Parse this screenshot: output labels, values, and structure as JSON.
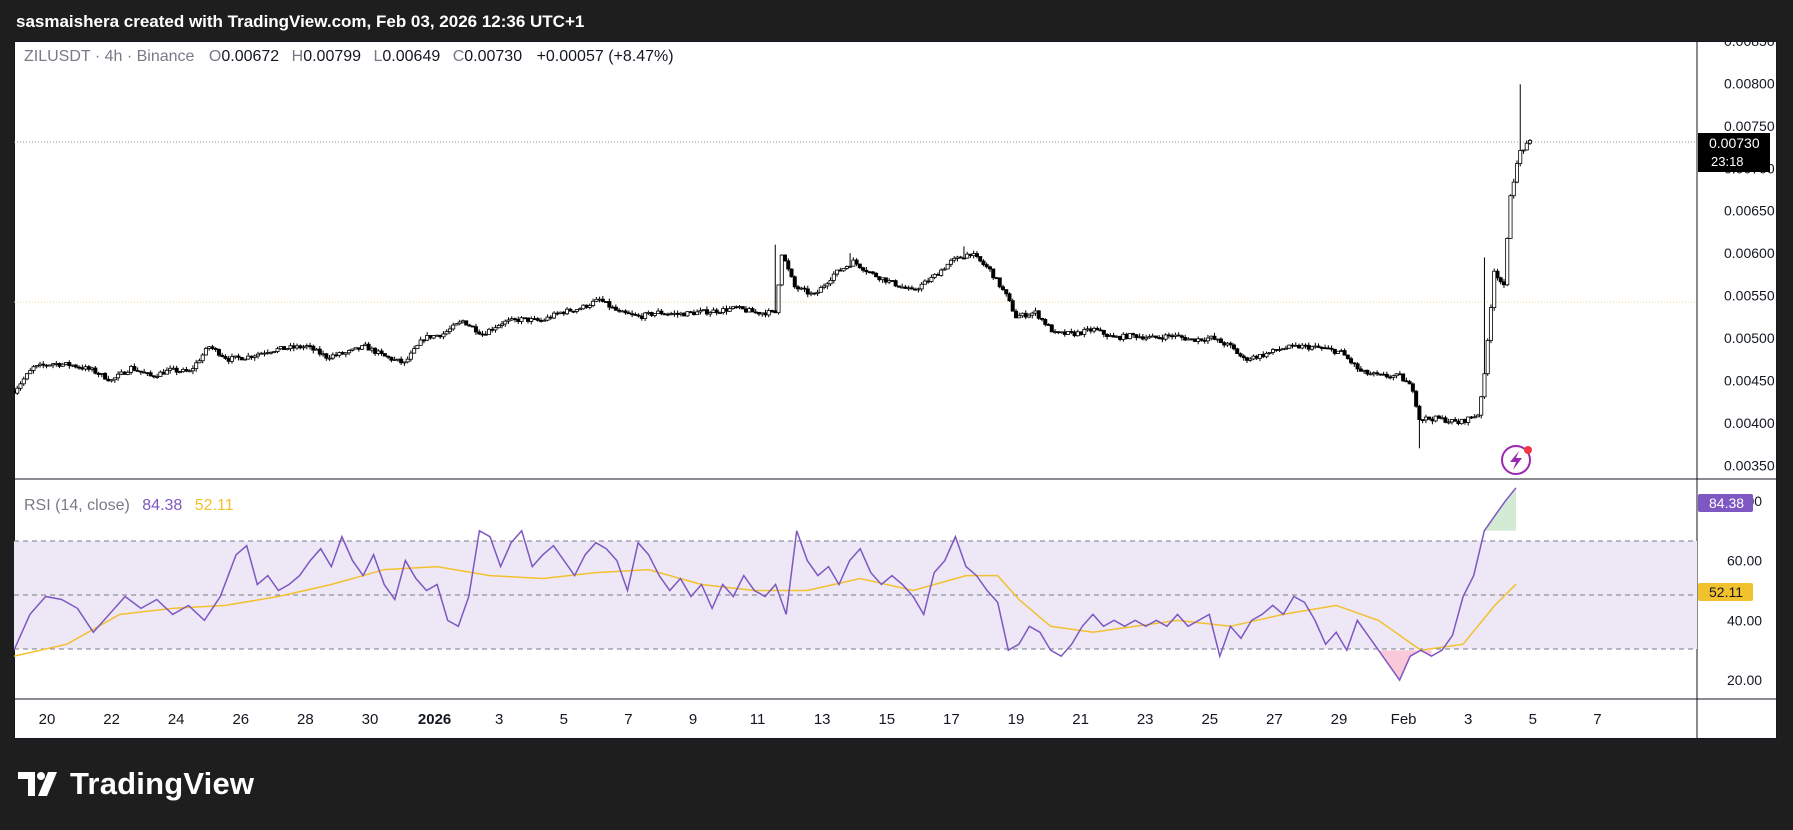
{
  "header": {
    "attribution": "sasmaishera created with TradingView.com, Feb 03, 2026 12:36 UTC+1"
  },
  "legend": {
    "symbol": "ZILUSDT · 4h · Binance",
    "o_label": "O",
    "o_value": "0.00672",
    "h_label": "H",
    "h_value": "0.00799",
    "l_label": "L",
    "l_value": "0.00649",
    "c_label": "C",
    "c_value": "0.00730",
    "change": "+0.00057 (+8.47%)"
  },
  "price_badge": {
    "value": "0.00730",
    "countdown": "23:18"
  },
  "rsi_legend": {
    "label": "RSI (14, close)",
    "rsi_value": "84.38",
    "ma_value": "52.11"
  },
  "rsi_badges": {
    "rsi": "84.38",
    "ma": "52.11"
  },
  "footer": {
    "brand": "TradingView"
  },
  "colors": {
    "rsi_line": "#7e57c2",
    "rsi_ma": "#f2c12e",
    "rsi_band": "#ede7f6",
    "candle": "#000000",
    "badge_bg": "#000000"
  },
  "chart_data": [
    {
      "type": "candlestick",
      "symbol": "ZILUSDT",
      "interval": "4h",
      "exchange": "Binance",
      "ylim": [
        0.00335,
        0.0085
      ],
      "y_ticks": [
        "0.00350",
        "0.00400",
        "0.00450",
        "0.00500",
        "0.00550",
        "0.00600",
        "0.00650",
        "0.00700",
        "0.00750",
        "0.00800",
        "0.00850"
      ],
      "x_ticks": [
        "20",
        "22",
        "24",
        "26",
        "28",
        "30",
        "2026",
        "3",
        "5",
        "7",
        "9",
        "11",
        "13",
        "15",
        "17",
        "19",
        "21",
        "23",
        "25",
        "27",
        "29",
        "Feb",
        "3",
        "5",
        "7"
      ],
      "last_price": 0.0073,
      "close_path": [
        [
          0,
          0.00438
        ],
        [
          6,
          0.00465
        ],
        [
          12,
          0.0047
        ],
        [
          18,
          0.00468
        ],
        [
          24,
          0.00462
        ],
        [
          30,
          0.0045
        ],
        [
          36,
          0.00465
        ],
        [
          42,
          0.00455
        ],
        [
          48,
          0.00462
        ],
        [
          54,
          0.0046
        ],
        [
          60,
          0.0049
        ],
        [
          66,
          0.00475
        ],
        [
          72,
          0.00478
        ],
        [
          78,
          0.00485
        ],
        [
          84,
          0.00488
        ],
        [
          90,
          0.0049
        ],
        [
          96,
          0.00478
        ],
        [
          102,
          0.00482
        ],
        [
          108,
          0.0049
        ],
        [
          114,
          0.00478
        ],
        [
          120,
          0.0047
        ],
        [
          126,
          0.005
        ],
        [
          132,
          0.00505
        ],
        [
          138,
          0.0052
        ],
        [
          144,
          0.00505
        ],
        [
          150,
          0.00518
        ],
        [
          156,
          0.00522
        ],
        [
          162,
          0.0052
        ],
        [
          168,
          0.0053
        ],
        [
          174,
          0.00535
        ],
        [
          180,
          0.00545
        ],
        [
          186,
          0.0053
        ],
        [
          192,
          0.00525
        ],
        [
          198,
          0.0053
        ],
        [
          204,
          0.00528
        ],
        [
          210,
          0.0053
        ],
        [
          216,
          0.00532
        ],
        [
          222,
          0.00535
        ],
        [
          228,
          0.0053
        ],
        [
          234,
          0.0053
        ],
        [
          236,
          0.006
        ],
        [
          240,
          0.0056
        ],
        [
          246,
          0.0055
        ],
        [
          252,
          0.00575
        ],
        [
          258,
          0.0059
        ],
        [
          264,
          0.00575
        ],
        [
          270,
          0.00565
        ],
        [
          276,
          0.00555
        ],
        [
          282,
          0.0057
        ],
        [
          288,
          0.0059
        ],
        [
          294,
          0.006
        ],
        [
          300,
          0.0058
        ],
        [
          305,
          0.0055
        ],
        [
          308,
          0.00525
        ],
        [
          314,
          0.0053
        ],
        [
          320,
          0.00505
        ],
        [
          326,
          0.00505
        ],
        [
          332,
          0.0051
        ],
        [
          338,
          0.005
        ],
        [
          344,
          0.00503
        ],
        [
          350,
          0.005
        ],
        [
          356,
          0.00503
        ],
        [
          362,
          0.00498
        ],
        [
          368,
          0.005
        ],
        [
          374,
          0.0049
        ],
        [
          378,
          0.00475
        ],
        [
          384,
          0.0048
        ],
        [
          390,
          0.00488
        ],
        [
          396,
          0.0049
        ],
        [
          402,
          0.00488
        ],
        [
          408,
          0.00483
        ],
        [
          414,
          0.0046
        ],
        [
          420,
          0.00455
        ],
        [
          426,
          0.00455
        ],
        [
          430,
          0.0044
        ],
        [
          432,
          0.00405
        ],
        [
          438,
          0.00405
        ],
        [
          444,
          0.004
        ],
        [
          450,
          0.0041
        ],
        [
          452,
          0.00455
        ],
        [
          455,
          0.0058
        ],
        [
          458,
          0.0056
        ],
        [
          460,
          0.0067
        ],
        [
          463,
          0.0072
        ],
        [
          466,
          0.0073
        ]
      ],
      "spikes": [
        [
          234,
          0.0061
        ],
        [
          257,
          0.006
        ],
        [
          292,
          0.00608
        ],
        [
          432,
          0.0037
        ],
        [
          452,
          0.00595
        ],
        [
          463,
          0.00799
        ]
      ]
    },
    {
      "type": "line",
      "title": "RSI (14, close)",
      "ylim": [
        14,
        87
      ],
      "y_ticks": [
        "20.00",
        "40.00",
        "60.00",
        "80.00"
      ],
      "bands": [
        30,
        50,
        70
      ],
      "series": [
        {
          "points": [
            [
              0,
              30
            ],
            [
              3,
              42
            ],
            [
              6,
              48
            ],
            [
              9,
              47
            ],
            [
              12,
              44
            ],
            [
              15,
              36
            ],
            [
              18,
              42
            ],
            [
              21,
              48
            ],
            [
              24,
              44
            ],
            [
              27,
              47
            ],
            [
              30,
              42
            ],
            [
              33,
              45
            ],
            [
              36,
              40
            ],
            [
              39,
              48
            ],
            [
              42,
              62
            ],
            [
              44,
              65
            ],
            [
              46,
              52
            ],
            [
              48,
              55
            ],
            [
              50,
              50
            ],
            [
              52,
              52
            ],
            [
              54,
              55
            ],
            [
              56,
              60
            ],
            [
              58,
              64
            ],
            [
              60,
              58
            ],
            [
              62,
              68
            ],
            [
              64,
              60
            ],
            [
              66,
              55
            ],
            [
              68,
              62
            ],
            [
              70,
              52
            ],
            [
              72,
              47
            ],
            [
              74,
              60
            ],
            [
              76,
              54
            ],
            [
              78,
              50
            ],
            [
              80,
              52
            ],
            [
              82,
              40
            ],
            [
              84,
              38
            ],
            [
              86,
              48
            ],
            [
              88,
              70
            ],
            [
              90,
              68
            ],
            [
              92,
              58
            ],
            [
              94,
              66
            ],
            [
              96,
              70
            ],
            [
              98,
              58
            ],
            [
              100,
              62
            ],
            [
              102,
              65
            ],
            [
              104,
              60
            ],
            [
              106,
              55
            ],
            [
              108,
              62
            ],
            [
              110,
              66
            ],
            [
              112,
              64
            ],
            [
              114,
              60
            ],
            [
              116,
              50
            ],
            [
              118,
              66
            ],
            [
              120,
              62
            ],
            [
              122,
              55
            ],
            [
              124,
              50
            ],
            [
              126,
              54
            ],
            [
              128,
              48
            ],
            [
              130,
              52
            ],
            [
              132,
              44
            ],
            [
              134,
              52
            ],
            [
              136,
              48
            ],
            [
              138,
              55
            ],
            [
              140,
              50
            ],
            [
              142,
              48
            ],
            [
              144,
              52
            ],
            [
              146,
              42
            ],
            [
              148,
              70
            ],
            [
              150,
              60
            ],
            [
              152,
              55
            ],
            [
              154,
              58
            ],
            [
              156,
              52
            ],
            [
              158,
              60
            ],
            [
              160,
              64
            ],
            [
              162,
              56
            ],
            [
              164,
              52
            ],
            [
              166,
              55
            ],
            [
              168,
              52
            ],
            [
              170,
              48
            ],
            [
              172,
              42
            ],
            [
              174,
              56
            ],
            [
              176,
              60
            ],
            [
              178,
              68
            ],
            [
              180,
              58
            ],
            [
              182,
              55
            ],
            [
              184,
              50
            ],
            [
              186,
              46
            ],
            [
              188,
              30
            ],
            [
              190,
              32
            ],
            [
              192,
              38
            ],
            [
              194,
              36
            ],
            [
              196,
              30
            ],
            [
              198,
              28
            ],
            [
              200,
              32
            ],
            [
              202,
              38
            ],
            [
              204,
              42
            ],
            [
              206,
              38
            ],
            [
              208,
              40
            ],
            [
              210,
              38
            ],
            [
              212,
              40
            ],
            [
              214,
              38
            ],
            [
              216,
              40
            ],
            [
              218,
              38
            ],
            [
              220,
              42
            ],
            [
              222,
              38
            ],
            [
              224,
              40
            ],
            [
              226,
              42
            ],
            [
              228,
              28
            ],
            [
              230,
              38
            ],
            [
              232,
              34
            ],
            [
              234,
              40
            ],
            [
              236,
              42
            ],
            [
              238,
              45
            ],
            [
              240,
              42
            ],
            [
              242,
              48
            ],
            [
              244,
              46
            ],
            [
              246,
              40
            ],
            [
              248,
              32
            ],
            [
              250,
              36
            ],
            [
              252,
              30
            ],
            [
              254,
              40
            ],
            [
              256,
              35
            ],
            [
              258,
              30
            ],
            [
              260,
              25
            ],
            [
              262,
              20
            ],
            [
              264,
              28
            ],
            [
              266,
              30
            ],
            [
              268,
              28
            ],
            [
              270,
              30
            ],
            [
              272,
              35
            ],
            [
              274,
              48
            ],
            [
              276,
              55
            ],
            [
              278,
              70
            ],
            [
              280,
              75
            ],
            [
              282,
              80
            ],
            [
              284,
              84.38
            ]
          ]
        },
        {
          "points": [
            [
              0,
              28
            ],
            [
              10,
              32
            ],
            [
              20,
              42
            ],
            [
              30,
              44
            ],
            [
              40,
              45
            ],
            [
              50,
              48
            ],
            [
              60,
              52
            ],
            [
              70,
              57
            ],
            [
              80,
              58
            ],
            [
              90,
              55
            ],
            [
              100,
              54
            ],
            [
              110,
              56
            ],
            [
              120,
              57
            ],
            [
              130,
              52
            ],
            [
              140,
              50
            ],
            [
              150,
              50
            ],
            [
              160,
              54
            ],
            [
              170,
              50
            ],
            [
              180,
              55
            ],
            [
              186,
              55
            ],
            [
              190,
              47
            ],
            [
              196,
              38
            ],
            [
              204,
              36
            ],
            [
              212,
              38
            ],
            [
              220,
              40
            ],
            [
              230,
              38
            ],
            [
              240,
              42
            ],
            [
              250,
              45
            ],
            [
              258,
              40
            ],
            [
              266,
              30
            ],
            [
              274,
              32
            ],
            [
              280,
              45
            ],
            [
              284,
              52.11
            ]
          ]
        }
      ]
    }
  ]
}
